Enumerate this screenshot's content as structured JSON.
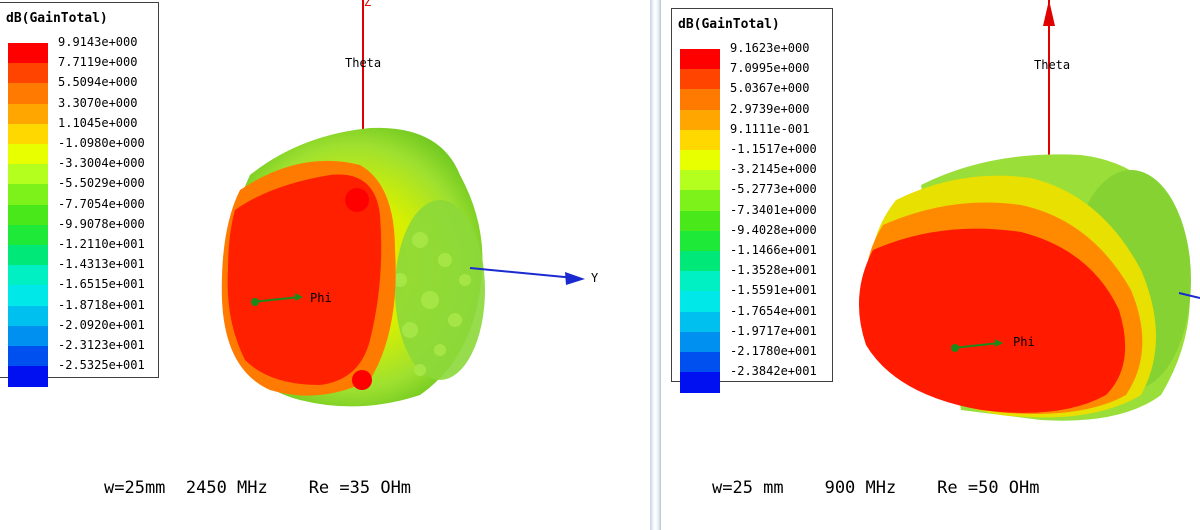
{
  "left": {
    "legend_title": "dB(GainTotal)",
    "ticks": [
      "9.9143e+000",
      "7.7119e+000",
      "5.5094e+000",
      "3.3070e+000",
      "1.1045e+000",
      "-1.0980e+000",
      "-3.3004e+000",
      "-5.5029e+000",
      "-7.7054e+000",
      "-9.9078e+000",
      "-1.2110e+001",
      "-1.4313e+001",
      "-1.6515e+001",
      "-1.8718e+001",
      "-2.0920e+001",
      "-2.3123e+001",
      "-2.5325e+001"
    ],
    "axes": {
      "z": "Z",
      "theta": "Theta",
      "phi": "Phi",
      "y": "Y"
    },
    "caption": "w=25mm  2450 MHz    Re =35 OHm"
  },
  "right": {
    "legend_title": "dB(GainTotal)",
    "ticks": [
      "9.1623e+000",
      "7.0995e+000",
      "5.0367e+000",
      "2.9739e+000",
      "9.1111e-001",
      "-1.1517e+000",
      "-3.2145e+000",
      "-5.2773e+000",
      "-7.3401e+000",
      "-9.4028e+000",
      "-1.1466e+001",
      "-1.3528e+001",
      "-1.5591e+001",
      "-1.7654e+001",
      "-1.9717e+001",
      "-2.1780e+001",
      "-2.3842e+001"
    ],
    "axes": {
      "theta": "Theta",
      "phi": "Phi"
    },
    "caption": "w=25 mm    900 MHz    Re =50 OHm"
  },
  "colorscale": [
    "#ff0000",
    "#ff4400",
    "#ff7a00",
    "#ffa600",
    "#ffd800",
    "#e8ff00",
    "#b4ff1e",
    "#7cf21a",
    "#48e81a",
    "#1ee838",
    "#00e877",
    "#00f0c4",
    "#00e8e8",
    "#00c0f0",
    "#0090f0",
    "#0050f0",
    "#0010f0"
  ]
}
